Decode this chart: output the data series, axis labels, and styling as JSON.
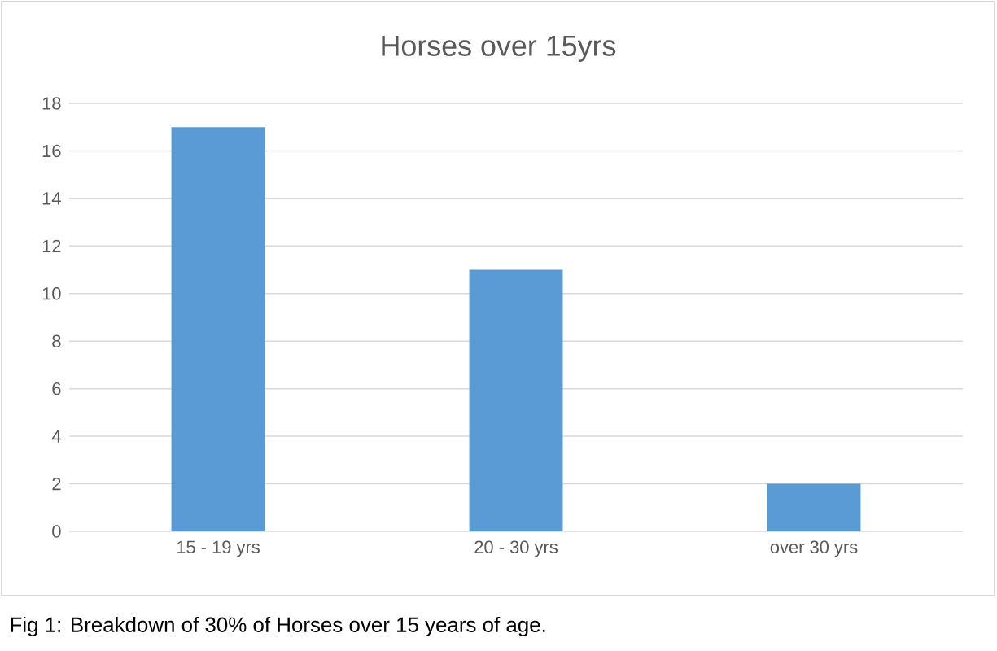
{
  "chart_data": {
    "type": "bar",
    "title": "Horses over 15yrs",
    "categories": [
      "15 - 19 yrs",
      "20 - 30 yrs",
      "over 30 yrs"
    ],
    "values": [
      17,
      11,
      2
    ],
    "color": "#5b9bd5",
    "ylim": [
      0,
      18
    ],
    "yticks": [
      0,
      2,
      4,
      6,
      8,
      10,
      12,
      14,
      16,
      18
    ],
    "grid": "y",
    "annotations": [
      "Fig 1: Breakdown of 30% of Horses over 15 years of age."
    ]
  }
}
